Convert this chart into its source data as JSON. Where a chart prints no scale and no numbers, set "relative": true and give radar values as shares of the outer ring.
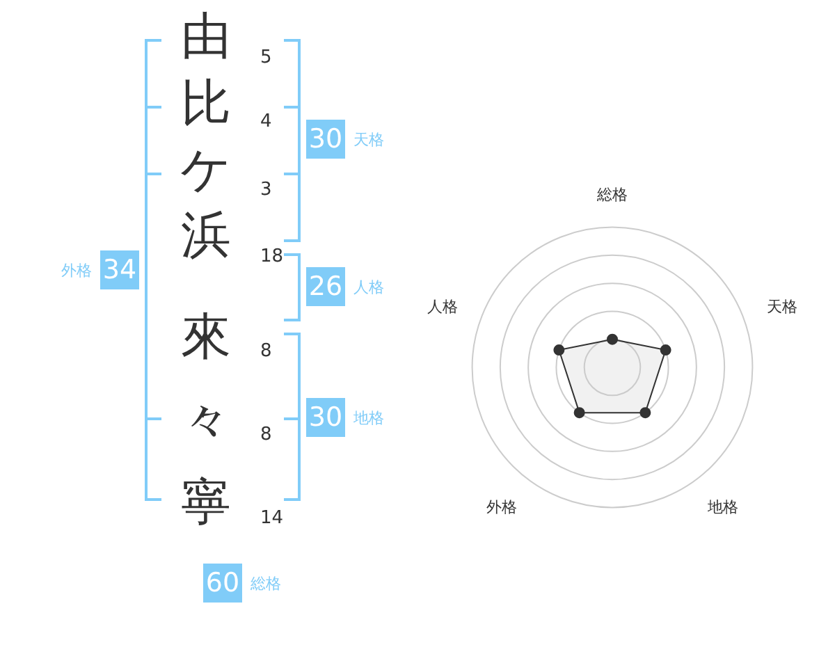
{
  "chart_data": [
    {
      "type": "other",
      "categories": [
        "由",
        "比",
        "ケ",
        "浜",
        "來",
        "々",
        "寧"
      ],
      "color": "#80ccf8",
      "annotations": [
        "5",
        "4",
        "3",
        "18",
        "8",
        "8",
        "14",
        "30",
        "天格",
        "26",
        "人格",
        "30",
        "地格",
        "34",
        "外格",
        "60",
        "総格"
      ]
    },
    {
      "type": "radar",
      "relative": true,
      "grid": true,
      "marker": "circle",
      "legend": false,
      "categories": [
        "総格",
        "天格",
        "地格",
        "外格",
        "人格"
      ],
      "series": [
        {
          "color": "#333333",
          "values": [
            0.2,
            0.4,
            0.4,
            0.4,
            0.4
          ]
        }
      ]
    }
  ]
}
